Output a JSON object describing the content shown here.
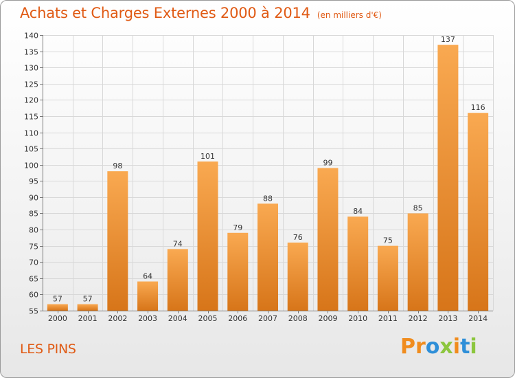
{
  "title": {
    "main": "Achats et Charges Externes 2000 à 2014",
    "unit": "(en milliers d'€)"
  },
  "place": "LES PINS",
  "logo": {
    "parts": [
      "Pr",
      "o",
      "x",
      "i",
      "t",
      "i"
    ],
    "colors": [
      "#f08c1e",
      "#2f8fd8",
      "#8cc63e"
    ]
  },
  "colors": {
    "title": "#e05a14",
    "bar_light": "#f9a951",
    "bar_dark": "#d77519",
    "grid": "#d8d8d8"
  },
  "chart_data": {
    "type": "bar",
    "title": "Achats et Charges Externes 2000 à 2014",
    "subtitle": "(en milliers d'€)",
    "xlabel": "",
    "ylabel": "",
    "categories": [
      "2000",
      "2001",
      "2002",
      "2003",
      "2004",
      "2005",
      "2006",
      "2007",
      "2008",
      "2009",
      "2010",
      "2011",
      "2012",
      "2013",
      "2014"
    ],
    "values": [
      57,
      57,
      98,
      64,
      74,
      101,
      79,
      88,
      76,
      99,
      84,
      75,
      85,
      137,
      116
    ],
    "ylim": [
      55,
      140
    ],
    "yticks": [
      55,
      60,
      65,
      70,
      75,
      80,
      85,
      90,
      95,
      100,
      105,
      110,
      115,
      120,
      125,
      130,
      135,
      140
    ],
    "grid": true,
    "legend": "none",
    "data_labels": true
  }
}
